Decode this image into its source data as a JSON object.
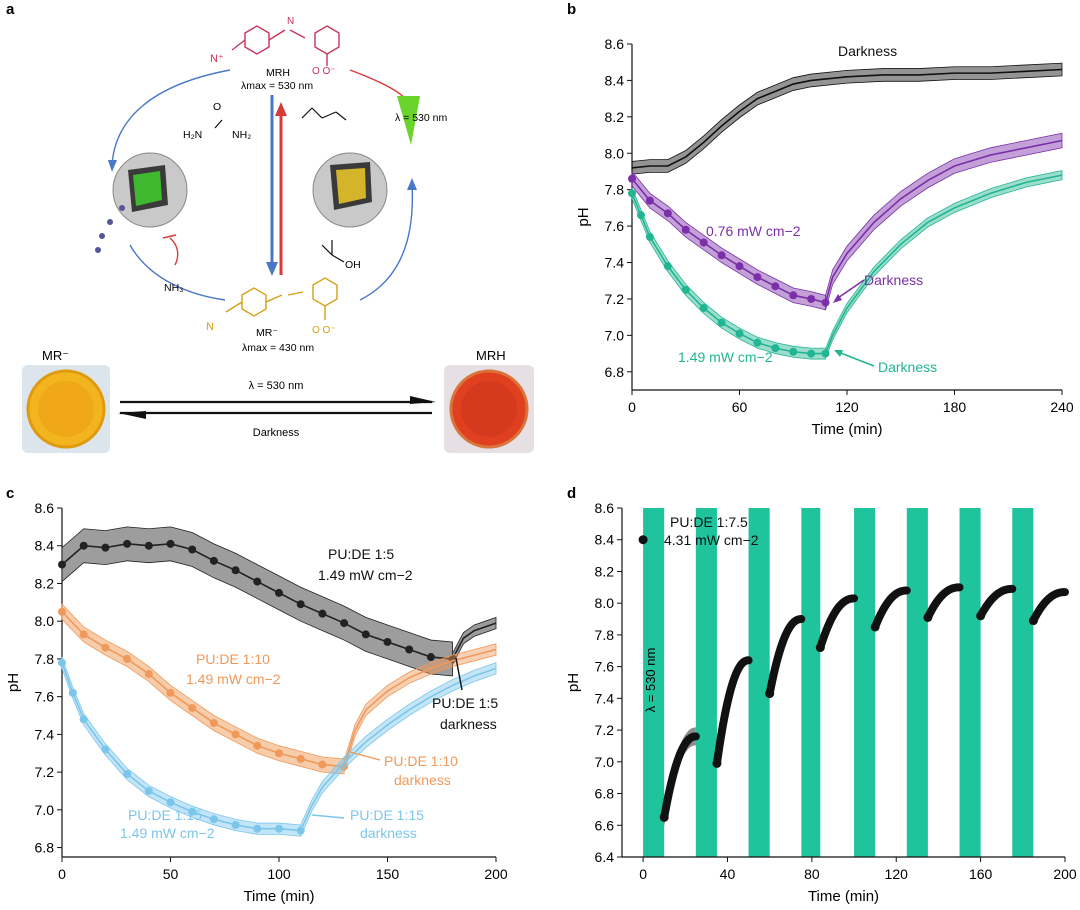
{
  "panels": {
    "a": {
      "label": "a",
      "mrh_label": "MRH",
      "mrh_lambda": "λmax = 530 nm",
      "mr_label": "MR⁻",
      "mr_lambda": "λmax = 430 nm",
      "light_label": "λ = 530 nm",
      "urea": "H₂N–CO–NH₂",
      "urea_h2n": "H₂N",
      "urea_nh2": "NH₂",
      "nh3": "NH₃",
      "oh": "OH",
      "vial_left_label": "MR⁻",
      "vial_right_label": "MRH",
      "arrow_top_label": "λ = 530 nm",
      "arrow_bottom_label": "Darkness",
      "colors": {
        "mrh": "#c8325a",
        "mr": "#d4a017",
        "blue": "#4a78c8",
        "red": "#d83a3a"
      }
    },
    "b": {
      "label": "b"
    },
    "c": {
      "label": "c"
    },
    "d": {
      "label": "d"
    }
  },
  "chart_data": [
    {
      "id": "b",
      "type": "line",
      "xlabel": "Time (min)",
      "ylabel": "pH",
      "xlim": [
        0,
        240
      ],
      "ylim": [
        6.7,
        8.6
      ],
      "xticks": [
        "0",
        "60",
        "120",
        "180",
        "240"
      ],
      "xtick_values": [
        0,
        60,
        120,
        180,
        240
      ],
      "yticks": [
        "6.8",
        "7.0",
        "7.2",
        "7.4",
        "7.6",
        "7.8",
        "8.0",
        "8.2",
        "8.4",
        "8.6"
      ],
      "ytick_values": [
        6.8,
        7.0,
        7.2,
        7.4,
        7.6,
        7.8,
        8.0,
        8.2,
        8.4,
        8.6
      ],
      "series": [
        {
          "name": "Darkness",
          "color": "#111111",
          "band": 0.035,
          "x": [
            0,
            10,
            20,
            30,
            40,
            50,
            60,
            70,
            80,
            90,
            100,
            120,
            140,
            160,
            180,
            200,
            220,
            240
          ],
          "y": [
            7.92,
            7.93,
            7.93,
            7.98,
            8.06,
            8.15,
            8.23,
            8.3,
            8.34,
            8.38,
            8.4,
            8.42,
            8.43,
            8.43,
            8.44,
            8.44,
            8.45,
            8.46
          ]
        },
        {
          "name": "0.76 mW cm−2",
          "color": "#7b2fa8",
          "band": 0.04,
          "x": [
            0,
            10,
            20,
            30,
            40,
            50,
            60,
            70,
            80,
            90,
            100,
            108
          ],
          "y": [
            7.86,
            7.74,
            7.67,
            7.58,
            7.51,
            7.44,
            7.38,
            7.32,
            7.27,
            7.22,
            7.2,
            7.18
          ],
          "markers": true
        },
        {
          "name": "Darkness (purple)",
          "color": "#7b2fa8",
          "band": 0.04,
          "x": [
            108,
            112,
            120,
            135,
            150,
            165,
            180,
            200,
            220,
            240
          ],
          "y": [
            7.18,
            7.32,
            7.45,
            7.62,
            7.75,
            7.85,
            7.93,
            7.99,
            8.03,
            8.07
          ]
        },
        {
          "name": "1.49 mW cm−2",
          "color": "#22b592",
          "band": 0.03,
          "x": [
            0,
            5,
            10,
            20,
            30,
            40,
            50,
            60,
            70,
            80,
            90,
            100,
            108
          ],
          "y": [
            7.78,
            7.66,
            7.54,
            7.38,
            7.25,
            7.15,
            7.07,
            7.01,
            6.96,
            6.93,
            6.91,
            6.9,
            6.9
          ],
          "markers": true
        },
        {
          "name": "Darkness (green)",
          "color": "#22b592",
          "band": 0.025,
          "x": [
            108,
            112,
            120,
            135,
            150,
            165,
            180,
            200,
            220,
            240
          ],
          "y": [
            6.9,
            7.0,
            7.15,
            7.35,
            7.5,
            7.62,
            7.7,
            7.78,
            7.84,
            7.88
          ]
        }
      ],
      "annotations": [
        {
          "text": "Darkness",
          "color": "#111111"
        },
        {
          "text": "0.76 mW cm−2",
          "color": "#7b2fa8"
        },
        {
          "text": "Darkness",
          "color": "#7b2fa8"
        },
        {
          "text": "1.49 mW cm−2",
          "color": "#22b592"
        },
        {
          "text": "Darkness",
          "color": "#22b592"
        }
      ]
    },
    {
      "id": "c",
      "type": "line",
      "xlabel": "Time (min)",
      "ylabel": "pH",
      "xlim": [
        0,
        200
      ],
      "ylim": [
        6.75,
        8.6
      ],
      "xticks": [
        "0",
        "50",
        "100",
        "150",
        "200"
      ],
      "xtick_values": [
        0,
        50,
        100,
        150,
        200
      ],
      "yticks": [
        "6.8",
        "7.0",
        "7.2",
        "7.4",
        "7.6",
        "7.8",
        "8.0",
        "8.2",
        "8.4",
        "8.6"
      ],
      "ytick_values": [
        6.8,
        7.0,
        7.2,
        7.4,
        7.6,
        7.8,
        8.0,
        8.2,
        8.4,
        8.6
      ],
      "series": [
        {
          "name": "PU:DE 1:5 1.49 mW cm−2",
          "color": "#222222",
          "bandcolor": "#8c8c8c",
          "band": 0.09,
          "x": [
            0,
            10,
            20,
            30,
            40,
            50,
            60,
            70,
            80,
            90,
            100,
            110,
            120,
            130,
            140,
            150,
            160,
            170,
            180
          ],
          "y": [
            8.3,
            8.4,
            8.39,
            8.41,
            8.4,
            8.41,
            8.38,
            8.32,
            8.27,
            8.21,
            8.15,
            8.09,
            8.04,
            7.99,
            7.93,
            7.89,
            7.85,
            7.81,
            7.8
          ],
          "markers": true
        },
        {
          "name": "PU:DE 1:5 darkness",
          "color": "#222222",
          "band": 0.03,
          "x": [
            180,
            185,
            190,
            195,
            200
          ],
          "y": [
            7.8,
            7.91,
            7.95,
            7.97,
            7.99
          ]
        },
        {
          "name": "PU:DE 1:10 1.49 mW cm−2",
          "color": "#f0995a",
          "bandcolor": "#f6c39c",
          "band": 0.04,
          "x": [
            0,
            10,
            20,
            30,
            40,
            50,
            60,
            70,
            80,
            90,
            100,
            110,
            120,
            130
          ],
          "y": [
            8.05,
            7.93,
            7.86,
            7.8,
            7.72,
            7.62,
            7.54,
            7.46,
            7.4,
            7.34,
            7.3,
            7.27,
            7.24,
            7.23
          ],
          "markers": true
        },
        {
          "name": "PU:DE 1:10 darkness",
          "color": "#f0995a",
          "band": 0.03,
          "x": [
            130,
            135,
            140,
            150,
            160,
            170,
            180,
            190,
            200
          ],
          "y": [
            7.23,
            7.42,
            7.53,
            7.63,
            7.7,
            7.75,
            7.79,
            7.82,
            7.85
          ]
        },
        {
          "name": "PU:DE 1:15 1.49 mW cm−2",
          "color": "#7cc6ec",
          "bandcolor": "#b8e1f6",
          "band": 0.03,
          "x": [
            0,
            5,
            10,
            20,
            30,
            40,
            50,
            60,
            70,
            80,
            90,
            100,
            110
          ],
          "y": [
            7.78,
            7.62,
            7.48,
            7.32,
            7.19,
            7.1,
            7.04,
            6.99,
            6.95,
            6.92,
            6.9,
            6.9,
            6.89
          ],
          "markers": true
        },
        {
          "name": "PU:DE 1:15 darkness",
          "color": "#7cc6ec",
          "band": 0.03,
          "x": [
            110,
            115,
            120,
            130,
            140,
            150,
            160,
            170,
            180,
            190,
            200
          ],
          "y": [
            6.89,
            7.02,
            7.12,
            7.25,
            7.36,
            7.45,
            7.53,
            7.6,
            7.66,
            7.71,
            7.75
          ]
        }
      ],
      "annotations": [
        {
          "text": "PU:DE 1:5",
          "color": "#111111"
        },
        {
          "text": "1.49 mW cm−2",
          "color": "#111111"
        },
        {
          "text": "PU:DE 1:10",
          "color": "#f0995a"
        },
        {
          "text": "1.49 mW cm−2",
          "color": "#f0995a"
        },
        {
          "text": "PU:DE 1:5",
          "color": "#111111"
        },
        {
          "text": "darkness",
          "color": "#111111"
        },
        {
          "text": "PU:DE 1:10",
          "color": "#f0995a"
        },
        {
          "text": "darkness",
          "color": "#f0995a"
        },
        {
          "text": "PU:DE 1:15",
          "color": "#7cc6ec"
        },
        {
          "text": "1.49 mW cm−2",
          "color": "#7cc6ec"
        },
        {
          "text": "PU:DE 1:15",
          "color": "#7cc6ec"
        },
        {
          "text": "darkness",
          "color": "#7cc6ec"
        }
      ]
    },
    {
      "id": "d",
      "type": "scatter",
      "xlabel": "Time (min)",
      "ylabel": "pH",
      "xlim": [
        -10,
        200
      ],
      "ylim": [
        6.4,
        8.6
      ],
      "xticks": [
        "0",
        "40",
        "80",
        "120",
        "160",
        "200"
      ],
      "xtick_values": [
        0,
        40,
        80,
        120,
        160,
        200
      ],
      "yticks": [
        "6.4",
        "6.6",
        "6.8",
        "7.0",
        "7.2",
        "7.4",
        "7.6",
        "7.8",
        "8.0",
        "8.2",
        "8.4",
        "8.6"
      ],
      "ytick_values": [
        6.4,
        6.6,
        6.8,
        7.0,
        7.2,
        7.4,
        7.6,
        7.8,
        8.0,
        8.2,
        8.4,
        8.6
      ],
      "bar_color": "#1fc39c",
      "light_bars": [
        [
          0,
          10
        ],
        [
          25,
          35
        ],
        [
          50,
          60
        ],
        [
          75,
          84
        ],
        [
          100,
          110
        ],
        [
          125,
          135
        ],
        [
          150,
          160
        ],
        [
          175,
          185
        ]
      ],
      "bar_label": "λ = 530 nm",
      "initial_point": {
        "x": 0,
        "y": 8.4
      },
      "segments": [
        {
          "x0": 10,
          "x1": 25,
          "y0": 6.65,
          "y1": 7.16
        },
        {
          "x0": 35,
          "x1": 50,
          "y0": 6.99,
          "y1": 7.64
        },
        {
          "x0": 60,
          "x1": 75,
          "y0": 7.43,
          "y1": 7.9
        },
        {
          "x0": 84,
          "x1": 100,
          "y0": 7.72,
          "y1": 8.03
        },
        {
          "x0": 110,
          "x1": 125,
          "y0": 7.85,
          "y1": 8.08
        },
        {
          "x0": 135,
          "x1": 150,
          "y0": 7.91,
          "y1": 8.1
        },
        {
          "x0": 160,
          "x1": 175,
          "y0": 7.92,
          "y1": 8.09
        },
        {
          "x0": 185,
          "x1": 200,
          "y0": 7.89,
          "y1": 8.07
        }
      ],
      "annotations": [
        {
          "text": "PU:DE 1:7.5",
          "color": "#111111"
        },
        {
          "text": "4.31 mW cm−2",
          "color": "#111111"
        }
      ]
    }
  ]
}
